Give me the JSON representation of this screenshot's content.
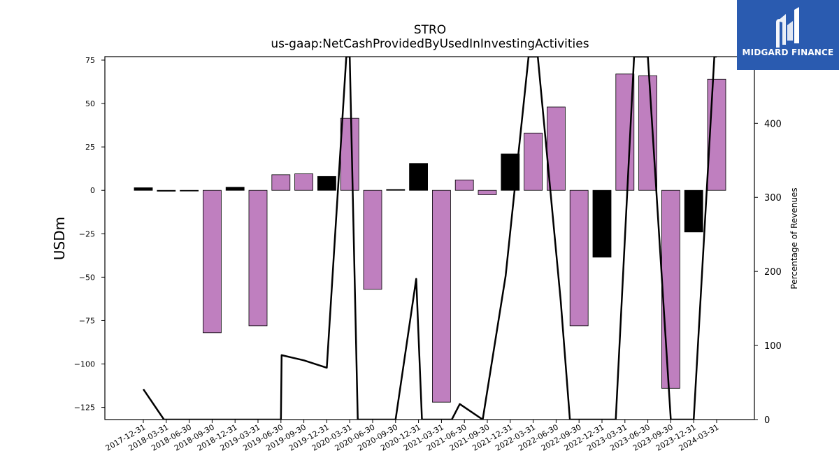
{
  "brand": {
    "name": "MIDGARD FINANCE",
    "bg_color": "#2a5bb0"
  },
  "chart_data": {
    "type": "bar",
    "title": "STRO",
    "subtitle": "us-gaap:NetCashProvidedByUsedInInvestingActivities",
    "ylabel": "USDm",
    "y2label": "Percentage of Revenues",
    "ylim": [
      -132,
      77
    ],
    "y2lim": [
      0,
      490
    ],
    "yticks": [
      -125,
      -100,
      -75,
      -50,
      -25,
      0,
      25,
      50,
      75
    ],
    "y2ticks": [
      0,
      100,
      200,
      300,
      400
    ],
    "categories": [
      "2017-12-31",
      "2018-03-31",
      "2018-06-30",
      "2018-09-30",
      "2018-12-31",
      "2019-03-31",
      "2019-06-30",
      "2019-09-30",
      "2019-12-31",
      "2020-03-31",
      "2020-06-30",
      "2020-09-30",
      "2020-12-31",
      "2021-03-31",
      "2021-06-30",
      "2021-09-30",
      "2021-12-31",
      "2022-03-31",
      "2022-06-30",
      "2022-09-30",
      "2022-12-31",
      "2023-03-31",
      "2023-06-30",
      "2023-09-30",
      "2023-12-31",
      "2024-03-31"
    ],
    "values": [
      1.5,
      -0.5,
      -0.3,
      -82,
      1.8,
      -78,
      9,
      9.5,
      8,
      41.5,
      -57,
      0.5,
      15.5,
      -122,
      6,
      -2.5,
      21,
      33,
      48,
      -78,
      -38.5,
      67,
      66,
      -114,
      -24,
      64
    ],
    "bar_colors": [
      "#000000",
      "#000000",
      "#000000",
      "#bf7fbf",
      "#000000",
      "#bf7fbf",
      "#bf7fbf",
      "#bf7fbf",
      "#000000",
      "#bf7fbf",
      "#bf7fbf",
      "#000000",
      "#000000",
      "#bf7fbf",
      "#bf7fbf",
      "#bf7fbf",
      "#000000",
      "#bf7fbf",
      "#bf7fbf",
      "#bf7fbf",
      "#000000",
      "#bf7fbf",
      "#bf7fbf",
      "#bf7fbf",
      "#000000",
      "#bf7fbf"
    ],
    "line": {
      "name": "Percentage of Revenues",
      "color": "#000000",
      "x": [
        0,
        0.9,
        6,
        6.03,
        7,
        8,
        8.85,
        9,
        9.35,
        10,
        10.5,
        11,
        11.9,
        12.15,
        13.3,
        13.45,
        13.8,
        14.8,
        15.8,
        16.8,
        17.2,
        18.2,
        18.6,
        20.1,
        20.6,
        21.4,
        21.8,
        22,
        23,
        23.35,
        24,
        24.9,
        25
      ],
      "y": [
        41,
        0,
        0,
        87,
        80,
        70,
        490,
        490,
        0,
        0,
        0,
        0,
        190,
        0,
        0,
        0,
        21,
        0,
        194,
        490,
        490,
        160,
        0,
        0,
        0,
        490,
        490,
        490,
        0,
        0,
        0,
        490,
        490
      ]
    },
    "grid": false,
    "legend": "none"
  }
}
